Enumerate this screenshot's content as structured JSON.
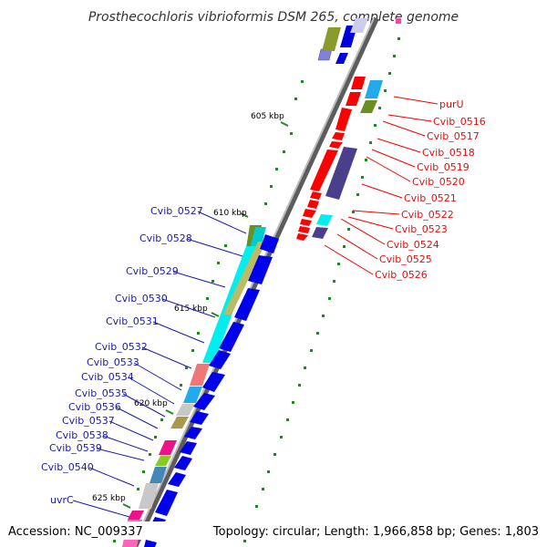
{
  "title": "Prosthecochloris vibrioformis DSM 265, complete genome",
  "footer": {
    "accession": "Accession: NC_009337",
    "topology": "Topology: circular; Length: 1,966,858 bp; Genes: 1,803"
  },
  "ticks": [
    "605 kbp",
    "610 kbp",
    "615 kbp",
    "620 kbp",
    "625 kbp"
  ],
  "labels_right": [
    "purU",
    "Cvib_0516",
    "Cvib_0517",
    "Cvib_0518",
    "Cvib_0519",
    "Cvib_0520",
    "Cvib_0521",
    "Cvib_0522",
    "Cvib_0523",
    "Cvib_0524",
    "Cvib_0525",
    "Cvib_0526"
  ],
  "labels_left": [
    "Cvib_0527",
    "Cvib_0528",
    "Cvib_0529",
    "Cvib_0530",
    "Cvib_0531",
    "Cvib_0532",
    "Cvib_0533",
    "Cvib_0534",
    "Cvib_0535",
    "Cvib_0536",
    "Cvib_0537",
    "Cvib_0538",
    "Cvib_0539",
    "Cvib_0540",
    "uvrC"
  ],
  "colors": {
    "reverse_strand": "#ee0000",
    "forward_strand": "#0000ee",
    "right_label": "#dd1111",
    "left_label": "#1a1aaa",
    "tick_marks": "#228822",
    "backbone": "#888888"
  }
}
